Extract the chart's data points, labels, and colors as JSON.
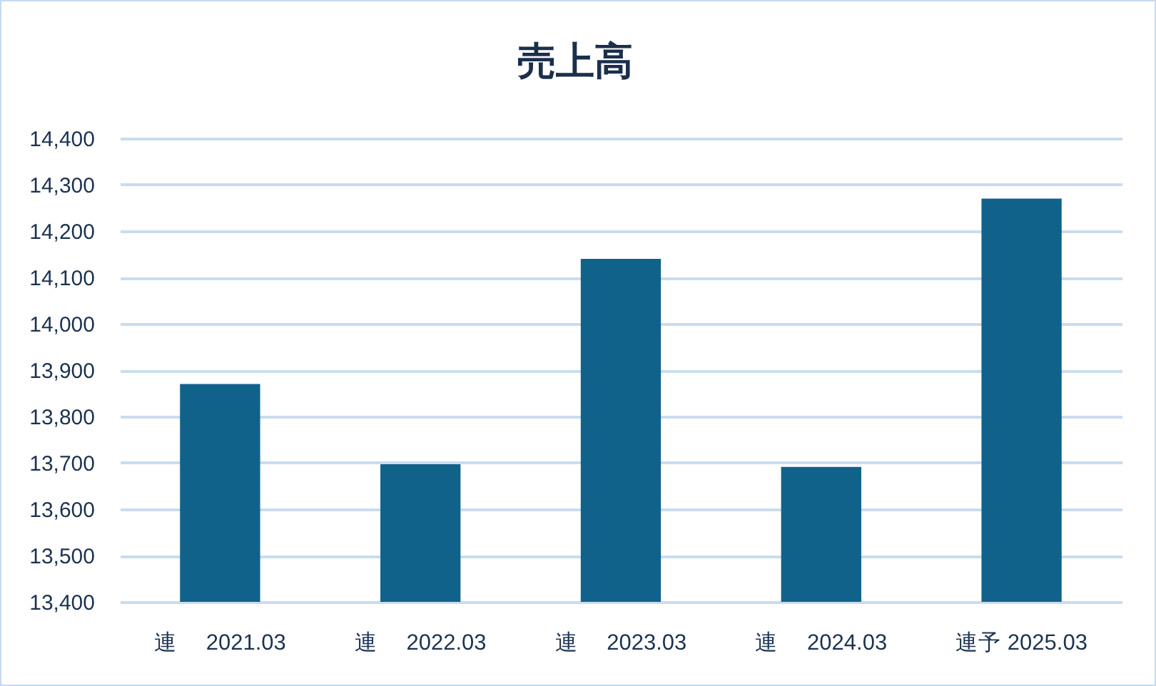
{
  "chart_data": {
    "type": "bar",
    "title": "売上高",
    "categories": [
      "連　 2021.03",
      "連　 2022.03",
      "連　 2023.03",
      "連　 2024.03",
      "連予 2025.03"
    ],
    "values": [
      13870,
      13697,
      14140,
      13691,
      14270
    ],
    "color": "#11628a",
    "ylim": [
      13400,
      14400
    ],
    "yticks": [
      {
        "value": 13400,
        "label": "13,400"
      },
      {
        "value": 13500,
        "label": "13,500"
      },
      {
        "value": 13600,
        "label": "13,600"
      },
      {
        "value": 13700,
        "label": "13,700"
      },
      {
        "value": 13800,
        "label": "13,800"
      },
      {
        "value": 13900,
        "label": "13,900"
      },
      {
        "value": 14000,
        "label": "14,000"
      },
      {
        "value": 14100,
        "label": "14,100"
      },
      {
        "value": 14200,
        "label": "14,200"
      },
      {
        "value": 14300,
        "label": "14,300"
      },
      {
        "value": 14400,
        "label": "14,400"
      }
    ],
    "grid": "y"
  }
}
